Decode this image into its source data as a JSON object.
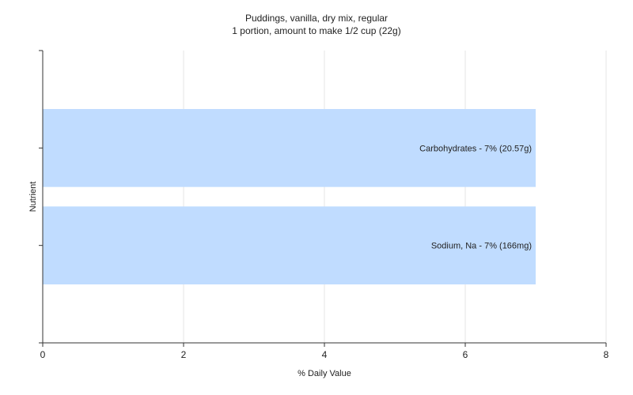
{
  "chart_data": {
    "type": "bar",
    "orientation": "horizontal",
    "title": "Puddings, vanilla, dry mix, regular",
    "subtitle": "1 portion, amount to make 1/2 cup (22g)",
    "xlabel": "% Daily Value",
    "ylabel": "Nutrient",
    "xlim": [
      0,
      8
    ],
    "xticks": [
      0,
      2,
      4,
      6,
      8
    ],
    "grid": "vertical",
    "legend": "none",
    "bar_color": "#c0dcff",
    "categories": [
      "Carbohydrates",
      "Sodium, Na"
    ],
    "values": [
      7,
      7
    ],
    "data_labels": [
      "Carbohydrates - 7% (20.57g)",
      "Sodium, Na - 7% (166mg)"
    ]
  }
}
